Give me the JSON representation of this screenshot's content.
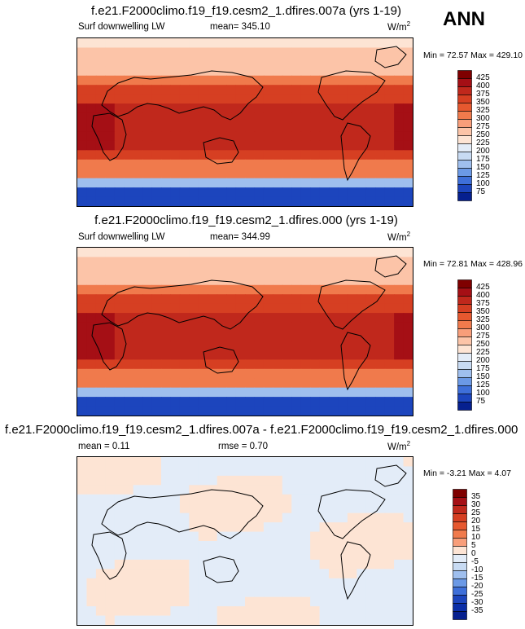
{
  "season": "ANN",
  "panels": [
    {
      "title": "f.e21.F2000climo.f19_f19.cesm2_1.dfires.007a (yrs 1-19)",
      "variable": "Surf downwelling LW",
      "stat_text": "mean= 345.10",
      "units": "W/m",
      "units_sup": "2",
      "minmax": "Min = 72.57 Max = 429.10"
    },
    {
      "title": "f.e21.F2000climo.f19_f19.cesm2_1.dfires.000 (yrs 1-19)",
      "variable": "Surf downwelling LW",
      "stat_text": "mean= 344.99",
      "units": "W/m",
      "units_sup": "2",
      "minmax": "Min = 72.81 Max = 428.96"
    },
    {
      "title": "f.e21.F2000climo.f19_f19.cesm2_1.dfires.007a - f.e21.F2000climo.f19_f19.cesm2_1.dfires.000",
      "variable": "mean = 0.11",
      "stat_text": "rmse = 0.70",
      "units": "W/m",
      "units_sup": "2",
      "minmax": "Min = -3.21 Max = 4.07"
    }
  ],
  "chart_data": [
    {
      "type": "heatmap",
      "title": "f.e21.F2000climo.f19_f19.cesm2_1.dfires.007a (yrs 1-19)",
      "variable": "Surf downwelling LW",
      "mean": 345.1,
      "units": "W/m2",
      "min": 72.57,
      "max": 429.1,
      "colorbar_levels": [
        425,
        400,
        375,
        350,
        325,
        300,
        275,
        250,
        225,
        200,
        175,
        150,
        125,
        100,
        75
      ],
      "colorbar_colors": [
        "#7f0000",
        "#a50f15",
        "#c0281c",
        "#d63f22",
        "#e6582f",
        "#f07a4c",
        "#f89e7a",
        "#fcc4a8",
        "#fde4d4",
        "#e3ecf8",
        "#c8dbf3",
        "#9fbfee",
        "#6b99e6",
        "#3e6fd9",
        "#1c45bd",
        "#06208f"
      ]
    },
    {
      "type": "heatmap",
      "title": "f.e21.F2000climo.f19_f19.cesm2_1.dfires.000 (yrs 1-19)",
      "variable": "Surf downwelling LW",
      "mean": 344.99,
      "units": "W/m2",
      "min": 72.81,
      "max": 428.96,
      "colorbar_levels": [
        425,
        400,
        375,
        350,
        325,
        300,
        275,
        250,
        225,
        200,
        175,
        150,
        125,
        100,
        75
      ],
      "colorbar_colors": [
        "#7f0000",
        "#a50f15",
        "#c0281c",
        "#d63f22",
        "#e6582f",
        "#f07a4c",
        "#f89e7a",
        "#fcc4a8",
        "#fde4d4",
        "#e3ecf8",
        "#c8dbf3",
        "#9fbfee",
        "#6b99e6",
        "#3e6fd9",
        "#1c45bd",
        "#06208f"
      ]
    },
    {
      "type": "heatmap",
      "title": "f.e21.F2000climo.f19_f19.cesm2_1.dfires.007a - f.e21.F2000climo.f19_f19.cesm2_1.dfires.000",
      "mean": 0.11,
      "rmse": 0.7,
      "units": "W/m2",
      "min": -3.21,
      "max": 4.07,
      "colorbar_levels": [
        35,
        30,
        25,
        20,
        15,
        10,
        5,
        0,
        -5,
        -10,
        -15,
        -20,
        -25,
        -30,
        -35
      ],
      "colorbar_colors": [
        "#7f0000",
        "#a50f15",
        "#c0281c",
        "#d63f22",
        "#e6582f",
        "#f07a4c",
        "#f89e7a",
        "#fde4d4",
        "#e3ecf8",
        "#c8dbf3",
        "#9fbfee",
        "#6b99e6",
        "#3e6fd9",
        "#1c45bd",
        "#0a2ea8",
        "#06208f"
      ]
    }
  ]
}
